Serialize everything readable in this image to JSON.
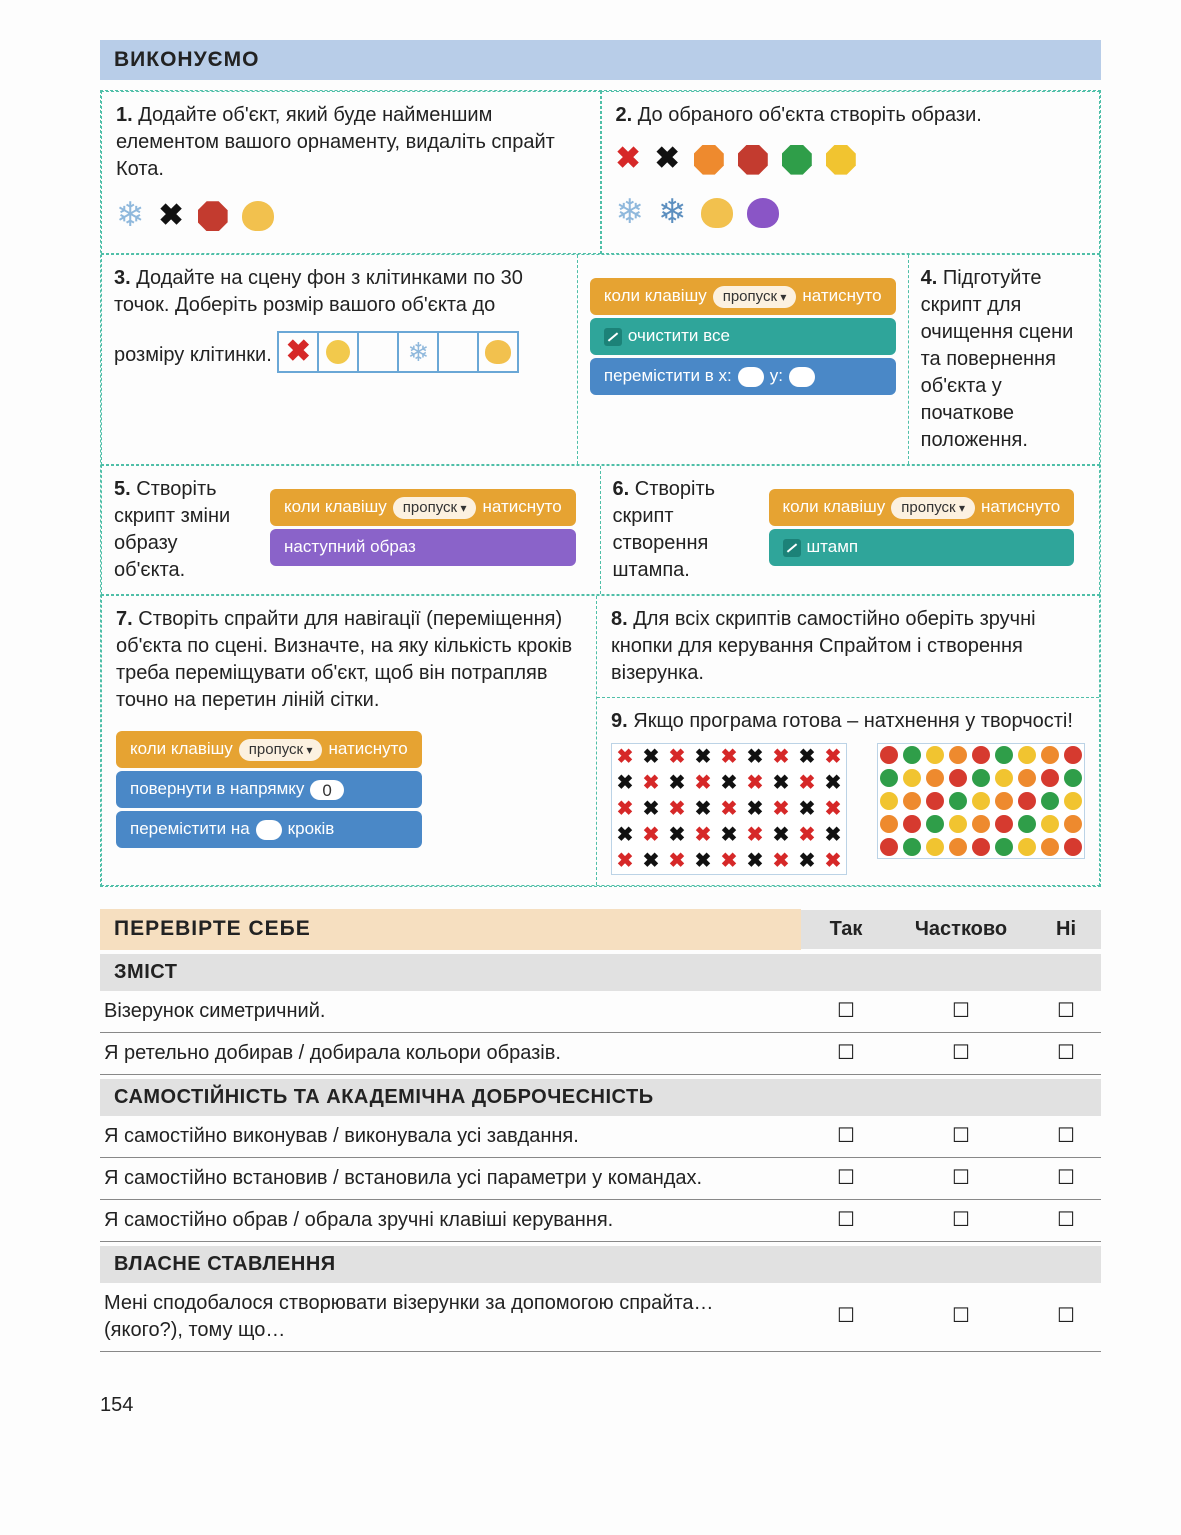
{
  "section_title": "ВИКОНУЄМО",
  "tasks": {
    "t1": {
      "num": "1.",
      "text": "Додайте об'єкт, який буде найменшим елементом вашого орнаменту, видаліть спрайт Кота."
    },
    "t2": {
      "num": "2.",
      "text": "До обраного об'єкта створіть образи."
    },
    "t3": {
      "num": "3.",
      "text": "Додайте на сцену фон з клітинками по 30 точок. Доберіть розмір вашого об'єкта до розміру клітинки."
    },
    "t4": {
      "num": "4.",
      "text": "Підготуйте скрипт для очищення сцени та повернення об'єкта у початкове положення."
    },
    "t5": {
      "num": "5.",
      "text": "Створіть скрипт зміни образу об'єкта."
    },
    "t6": {
      "num": "6.",
      "text": "Створіть скрипт створення штампа."
    },
    "t7": {
      "num": "7.",
      "text": "Створіть спрайти для навігації (переміщення) об'єкта по сцені. Визначте, на яку кількість кроків треба переміщувати об'єкт, щоб він потрапляв точно на перетин ліній сітки."
    },
    "t8": {
      "num": "8.",
      "text": "Для всіх скриптів самостійно оберіть зручні кнопки для керування Спрайтом і створення візерунка."
    },
    "t9": {
      "num": "9.",
      "text": "Якщо програма готова – натхнення у творчості!"
    }
  },
  "blocks": {
    "when_key": "коли клавішу",
    "space": "пропуск",
    "pressed": "натиснуто",
    "clear_all": "очистити все",
    "goto_xy_prefix": "перемістити в x:",
    "goto_xy_y": "y:",
    "next_costume": "наступний образ",
    "stamp": "штамп",
    "point_dir": "повернути в напрямку",
    "move_prefix": "перемістити на",
    "move_suffix": "кроків",
    "dir_value": "0"
  },
  "icon_colors": {
    "snow": "#8fb8dc",
    "octagon_red": "#c33b2f",
    "octagon_orange": "#ee8a2e",
    "octagon_green": "#2f9e49",
    "octagon_yellow": "#f1c430",
    "blob_yellow": "#f2c14e",
    "blob_purple": "#8a55c6",
    "circle_yellow": "#f2c94c"
  },
  "check": {
    "title": "ПЕРЕВІРТЕ СЕБЕ",
    "col_yes": "Так",
    "col_part": "Частково",
    "col_no": "Ні",
    "sub_content": "ЗМІСТ",
    "q1": "Візерунок симетричний.",
    "q2": "Я ретельно добирав / добирала кольори образів.",
    "sub_indep": "САМОСТІЙНІСТЬ ТА АКАДЕМІЧНА ДОБРОЧЕСНІСТЬ",
    "q3": "Я самостійно виконував / виконувала усі завдання.",
    "q4": "Я самостійно встановив / встановила усі параметри у командах.",
    "q5": "Я самостійно обрав / обрала зручні клавіші керування.",
    "sub_own": "ВЛАСНЕ СТАВЛЕННЯ",
    "q6": "Мені сподобалося створювати візерунки за допомогою спрайта… (якого?), тому що…"
  },
  "page_number": "154",
  "checkbox_glyph": "☐"
}
